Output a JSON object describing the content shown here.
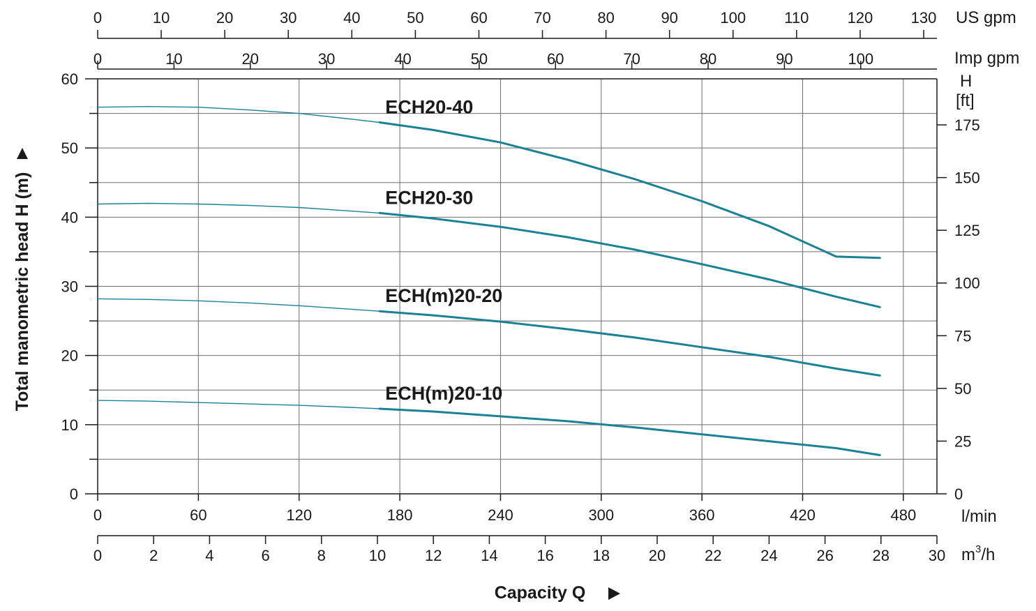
{
  "chart_data": {
    "type": "line",
    "title": "",
    "xlabel": "Capacity Q",
    "ylabel": "Total manometric head H (m)",
    "grid": true,
    "x_unit": "l/min",
    "xlim": [
      0,
      500
    ],
    "x_ticks": [
      0,
      60,
      120,
      180,
      240,
      300,
      360,
      420,
      480
    ],
    "y_unit": "",
    "ylim": [
      0,
      60
    ],
    "y_ticks": [
      0,
      10,
      20,
      30,
      40,
      50,
      60
    ],
    "secondary_axes": {
      "right_ft": {
        "unit_line1": "H",
        "unit_line2": "[ft]",
        "ticks": [
          0,
          25,
          50,
          75,
          100,
          125,
          150,
          175
        ]
      },
      "bottom_m3h": {
        "unit_base": "m",
        "unit_sup": "3",
        "unit_tail": "/h",
        "range": [
          0,
          30
        ],
        "ticks": [
          0,
          2,
          4,
          6,
          8,
          10,
          12,
          14,
          16,
          18,
          20,
          22,
          24,
          26,
          28,
          30
        ]
      },
      "top_us_gpm": {
        "unit": "US gpm",
        "ticks": [
          0,
          10,
          20,
          30,
          40,
          50,
          60,
          70,
          80,
          90,
          100,
          110,
          120,
          130
        ]
      },
      "top_imp_gpm": {
        "unit": "Imp gpm",
        "ticks": [
          0,
          10,
          20,
          30,
          40,
          50,
          60,
          70,
          80,
          90,
          100
        ]
      }
    },
    "series": [
      {
        "name": "ECH20-40",
        "color": "#1a8296",
        "x": [
          0,
          30,
          60,
          90,
          120,
          150,
          168,
          200,
          240,
          280,
          320,
          360,
          400,
          440,
          466
        ],
        "y": [
          55.9,
          56.0,
          55.9,
          55.5,
          55.0,
          54.2,
          53.7,
          52.6,
          50.8,
          48.3,
          45.5,
          42.3,
          38.7,
          34.3,
          34.1
        ]
      },
      {
        "name": "ECH20-30",
        "color": "#1a8296",
        "x": [
          0,
          30,
          60,
          90,
          120,
          150,
          168,
          200,
          240,
          280,
          320,
          360,
          400,
          440,
          466
        ],
        "y": [
          41.9,
          42.0,
          41.9,
          41.7,
          41.4,
          40.9,
          40.6,
          39.8,
          38.6,
          37.1,
          35.3,
          33.2,
          31.0,
          28.5,
          27.0
        ]
      },
      {
        "name": "ECH(m)20-20",
        "color": "#1a8296",
        "x": [
          0,
          30,
          60,
          90,
          120,
          150,
          168,
          200,
          240,
          280,
          320,
          360,
          400,
          440,
          466
        ],
        "y": [
          28.2,
          28.1,
          27.9,
          27.6,
          27.2,
          26.7,
          26.4,
          25.8,
          24.9,
          23.8,
          22.6,
          21.2,
          19.8,
          18.1,
          17.1
        ]
      },
      {
        "name": "ECH(m)20-10",
        "color": "#1a8296",
        "x": [
          0,
          30,
          60,
          90,
          120,
          150,
          168,
          200,
          240,
          280,
          320,
          360,
          400,
          440,
          466
        ],
        "y": [
          13.5,
          13.4,
          13.2,
          13.0,
          12.8,
          12.5,
          12.3,
          11.9,
          11.2,
          10.5,
          9.6,
          8.6,
          7.6,
          6.6,
          5.6
        ]
      }
    ]
  }
}
